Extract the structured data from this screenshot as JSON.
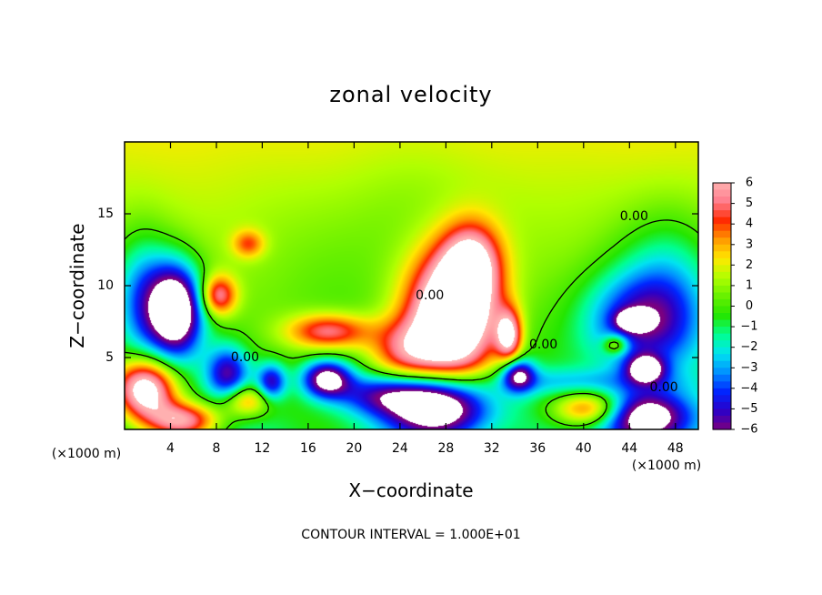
{
  "chart_data": {
    "type": "heatmap",
    "title": "zonal velocity",
    "xlabel": "X−coordinate",
    "ylabel": "Z−coordinate",
    "x_unit": "(×1000 m)",
    "y_unit": "(×1000 m)",
    "footer": "CONTOUR INTERVAL = 1.000E+01",
    "xlim": [
      0,
      50
    ],
    "ylim": [
      0,
      20
    ],
    "xticks": [
      4,
      8,
      12,
      16,
      20,
      24,
      28,
      32,
      36,
      40,
      44,
      48
    ],
    "yticks": [
      5,
      10,
      15
    ],
    "colorbar": {
      "min": -6,
      "max": 6,
      "ticks": [
        6,
        5,
        4,
        3,
        2,
        1,
        0,
        -1,
        -2,
        -3,
        -4,
        -5,
        -6
      ],
      "out_of_range_color": "#ffffff"
    },
    "colormap": [
      "#7a0080",
      "#2a00c8",
      "#0026ff",
      "#0090ff",
      "#00e4f0",
      "#00ff90",
      "#24e600",
      "#66f000",
      "#b0ff00",
      "#ffe800",
      "#ff9a00",
      "#ff2a00",
      "#ff7c8c",
      "#ffb0b0"
    ],
    "contour_labels": [
      {
        "x": 10.5,
        "y": 5.0,
        "text": "0.00"
      },
      {
        "x": 26.6,
        "y": 9.3,
        "text": "0.00"
      },
      {
        "x": 36.5,
        "y": 5.9,
        "text": "0.00"
      },
      {
        "x": 44.4,
        "y": 14.8,
        "text": "0.00"
      },
      {
        "x": 47.0,
        "y": 2.9,
        "text": "0.00"
      }
    ],
    "field_features": [
      {
        "x": 4.5,
        "y": 8.3,
        "sx": 1.6,
        "sy": 2.2,
        "amp": -9
      },
      {
        "x": 1.8,
        "y": 2.8,
        "sx": 1.9,
        "sy": 1.5,
        "amp": 8
      },
      {
        "x": 5.2,
        "y": 0.6,
        "sx": 2.2,
        "sy": 0.9,
        "amp": 6
      },
      {
        "x": 9.0,
        "y": 3.9,
        "sx": 1.3,
        "sy": 1.3,
        "amp": -5
      },
      {
        "x": 10.6,
        "y": 2.0,
        "sx": 1.5,
        "sy": 0.8,
        "amp": 4
      },
      {
        "x": 12.8,
        "y": 3.3,
        "sx": 0.9,
        "sy": 0.9,
        "amp": -5
      },
      {
        "x": 8.2,
        "y": 9.3,
        "sx": 1.1,
        "sy": 1.0,
        "amp": 5
      },
      {
        "x": 17.8,
        "y": 6.8,
        "sx": 2.6,
        "sy": 0.9,
        "amp": 5
      },
      {
        "x": 17.6,
        "y": 3.5,
        "sx": 1.5,
        "sy": 0.9,
        "amp": -7
      },
      {
        "x": 22.5,
        "y": 2.4,
        "sx": 3.0,
        "sy": 1.0,
        "amp": -4
      },
      {
        "x": 28.6,
        "y": 7.8,
        "sx": 2.8,
        "sy": 3.3,
        "amp": 10
      },
      {
        "x": 30.3,
        "y": 11.6,
        "sx": 1.8,
        "sy": 2.0,
        "amp": 5
      },
      {
        "x": 24.2,
        "y": 5.3,
        "sx": 2.3,
        "sy": 1.6,
        "amp": 4
      },
      {
        "x": 27.5,
        "y": 1.6,
        "sx": 3.1,
        "sy": 1.5,
        "amp": -9
      },
      {
        "x": 33.5,
        "y": 6.5,
        "sx": 0.8,
        "sy": 1.3,
        "amp": 6
      },
      {
        "x": 34.3,
        "y": 3.8,
        "sx": 1.0,
        "sy": 0.8,
        "amp": -6
      },
      {
        "x": 39.5,
        "y": 3.3,
        "sx": 5.5,
        "sy": 0.7,
        "amp": -2
      },
      {
        "x": 40.5,
        "y": 1.4,
        "sx": 2.3,
        "sy": 0.9,
        "amp": 5
      },
      {
        "x": 45.3,
        "y": 0.8,
        "sx": 2.7,
        "sy": 1.3,
        "amp": -8
      },
      {
        "x": 44.8,
        "y": 7.5,
        "sx": 3.5,
        "sy": 2.4,
        "amp": -5
      },
      {
        "x": 44.3,
        "y": 7.6,
        "sx": 1.0,
        "sy": 0.5,
        "amp": -5
      },
      {
        "x": 45.4,
        "y": 4.2,
        "sx": 1.2,
        "sy": 0.7,
        "amp": -6
      },
      {
        "x": 42.8,
        "y": 5.9,
        "sx": 0.8,
        "sy": 0.5,
        "amp": 4
      },
      {
        "x": 47.5,
        "y": 10.5,
        "sx": 3.0,
        "sy": 3.5,
        "amp": -2.5
      },
      {
        "x": 1.6,
        "y": 9.0,
        "sx": 1.8,
        "sy": 3.0,
        "amp": -4
      },
      {
        "x": 10.8,
        "y": 12.9,
        "sx": 1.0,
        "sy": 0.7,
        "amp": 3
      },
      {
        "x": 25.2,
        "y": 14.0,
        "sx": 6.0,
        "sy": 4.0,
        "amp": -0.8
      }
    ]
  }
}
